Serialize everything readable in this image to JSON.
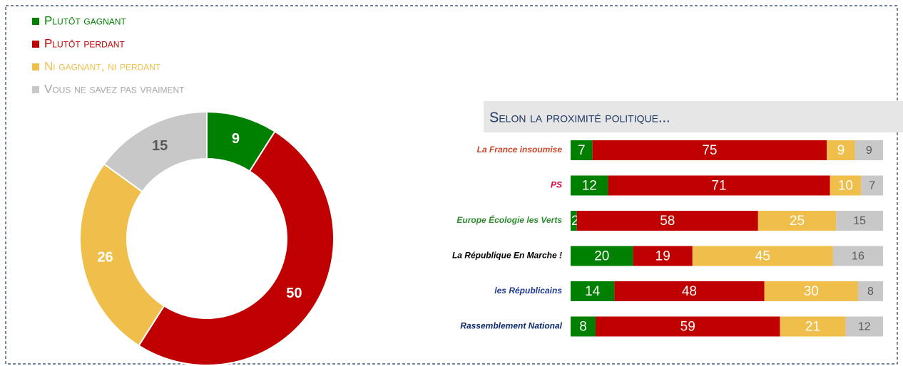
{
  "chart_data": [
    {
      "type": "donut",
      "categories": [
        "Plutôt gagnant",
        "Plutôt perdant",
        "Ni gagnant, ni perdant",
        "Vous ne savez pas vraiment"
      ],
      "values": [
        9,
        50,
        26,
        15
      ],
      "colors": [
        "#008000",
        "#c00000",
        "#f0be4b",
        "#c8c8c8"
      ],
      "label_colors": [
        "#ffffff",
        "#ffffff",
        "#ffffff",
        "#595959"
      ]
    },
    {
      "type": "stacked-bar",
      "title": "Selon la proximité politique...",
      "categories": [
        "La France insoumise",
        "PS",
        "Europe Écologie les Verts",
        "La République En Marche !",
        "les Républicains",
        "Rassemblement National"
      ],
      "category_colors": [
        "#c9452b",
        "#e4003b",
        "#2e8b2e",
        "#000000",
        "#1f3a93",
        "#0d2a6e"
      ],
      "xlim": [
        0,
        100
      ],
      "series": [
        {
          "color": "#008000",
          "values": [
            7,
            12,
            2,
            20,
            14,
            8
          ]
        },
        {
          "color": "#c00000",
          "values": [
            75,
            71,
            58,
            19,
            48,
            59
          ]
        },
        {
          "color": "#f0be4b",
          "values": [
            9,
            10,
            25,
            45,
            30,
            21
          ]
        },
        {
          "color": "#c8c8c8",
          "values": [
            9,
            7,
            15,
            16,
            8,
            12
          ]
        }
      ],
      "label_colors": [
        "#ffffff",
        "#ffffff",
        "#ffffff",
        "#595959"
      ]
    }
  ]
}
